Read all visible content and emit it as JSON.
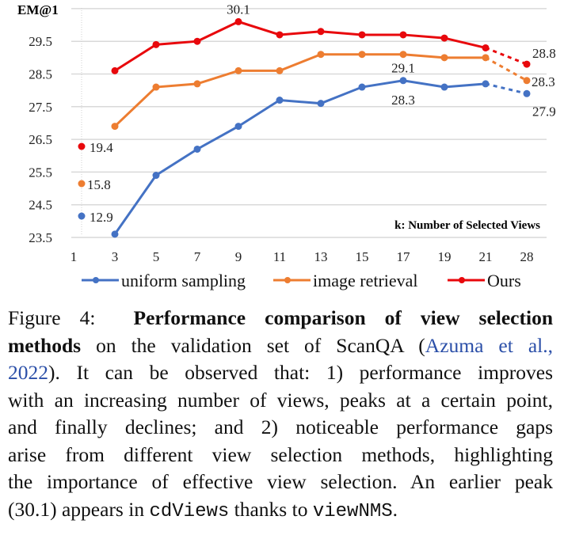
{
  "chart_data": {
    "type": "line",
    "ylabel": "EM@1",
    "xlabel": "k: Number of Selected Views",
    "categories": [
      "1",
      "3",
      "5",
      "7",
      "9",
      "11",
      "13",
      "15",
      "17",
      "19",
      "21",
      "28"
    ],
    "yticks": [
      "23.5",
      "24.5",
      "25.5",
      "26.5",
      "27.5",
      "28.5",
      "29.5"
    ],
    "ylim": [
      23.5,
      30.5
    ],
    "grid": true,
    "legend_position": "bottom",
    "colors": {
      "uniform": "#4472c4",
      "retrieval": "#ed7d31",
      "ours": "#e8080c"
    },
    "series": [
      {
        "name": "uniform sampling",
        "key": "uniform",
        "k1_value": 12.9,
        "values": [
          null,
          23.6,
          25.4,
          26.2,
          26.9,
          27.7,
          27.6,
          28.1,
          28.3,
          28.1,
          28.2,
          27.9
        ],
        "dashed_last": true
      },
      {
        "name": "image retrieval",
        "key": "retrieval",
        "k1_value": 15.8,
        "values": [
          null,
          26.9,
          28.1,
          28.2,
          28.6,
          28.6,
          29.1,
          29.1,
          29.1,
          29.0,
          29.0,
          28.3
        ],
        "dashed_last": true
      },
      {
        "name": "Ours",
        "key": "ours",
        "k1_value": 19.4,
        "values": [
          null,
          28.6,
          29.4,
          29.5,
          30.1,
          29.7,
          29.8,
          29.7,
          29.7,
          29.6,
          29.3,
          28.8
        ],
        "dashed_last": true
      }
    ],
    "annotations": [
      {
        "text": "30.1",
        "series": 2,
        "index": 4
      },
      {
        "text": "28.8",
        "series": 2,
        "index": 11
      },
      {
        "text": "28.3",
        "series": 1,
        "index": 11
      },
      {
        "text": "27.9",
        "series": 0,
        "index": 11
      },
      {
        "text": "29.1",
        "series": 1,
        "index": 8
      },
      {
        "text": "28.3",
        "series": 0,
        "index": 8
      },
      {
        "text": "19.4",
        "series": 2,
        "index": 0
      },
      {
        "text": "15.8",
        "series": 1,
        "index": 0
      },
      {
        "text": "12.9",
        "series": 0,
        "index": 0
      }
    ]
  },
  "caption": {
    "figure_label": "Figure 4:",
    "title_part1": "Performance comparison of view selection",
    "title_part2": "methods",
    "l2_text": " on the validation set of ScanQA (",
    "cite_1": "Azuma et al.,",
    "cite_2": "2022",
    "l3_text": "). It can be observed that: 1) performance improves",
    "l4": "with an increasing number of views, peaks at a certain point,",
    "l5": "and finally declines; and 2) noticeable performance gaps",
    "l6": "arise from different view selection methods, highlighting",
    "l7": "the importance of effective view selection. An earlier peak",
    "l8_a": "(30.1) appears in ",
    "l8_code1": "cdViews",
    "l8_b": " thanks to ",
    "l8_code2": "viewNMS",
    "l8_c": "."
  }
}
